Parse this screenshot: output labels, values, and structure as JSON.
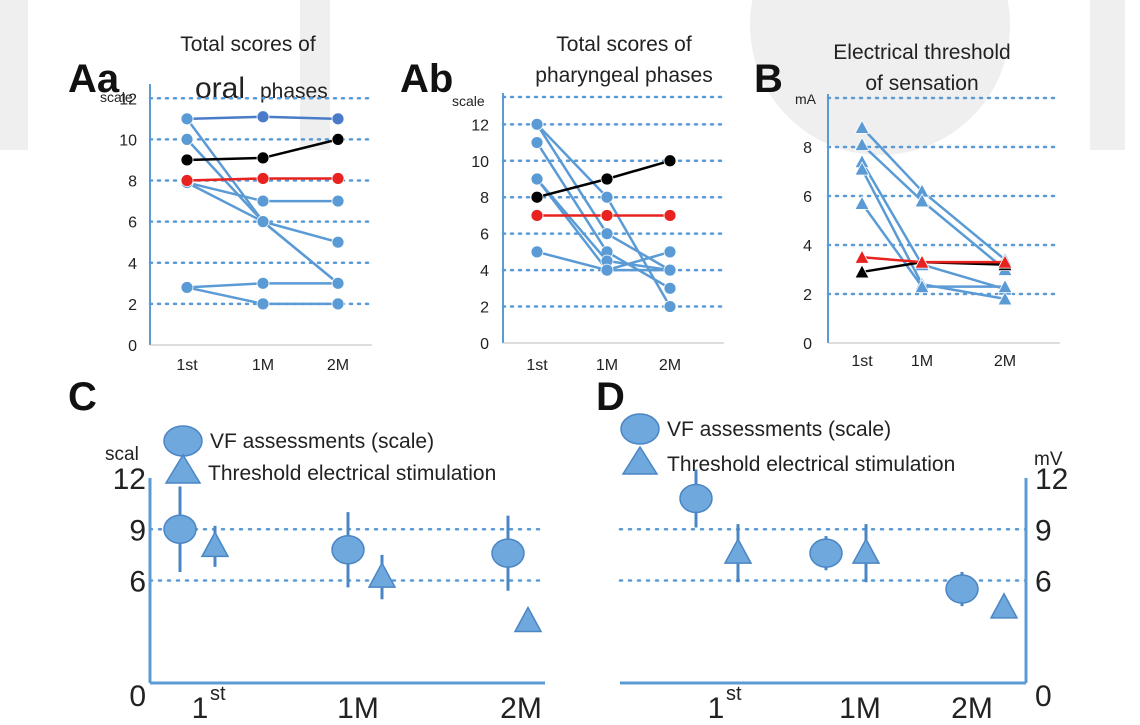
{
  "chart_data": [
    {
      "panel": "Aa",
      "type": "line",
      "title_line1": "Total scores of",
      "title_line2a": "oral",
      "title_line2b": "phases",
      "ylabel": "scale",
      "categories": [
        "1st",
        "1M",
        "2M"
      ],
      "yticks": [
        "0",
        "2",
        "4",
        "6",
        "8",
        "10",
        "12"
      ],
      "ylim": [
        0,
        12
      ],
      "grid": true,
      "series": [
        {
          "color": "#4a7bc8",
          "values": [
            11,
            11.1,
            11
          ]
        },
        {
          "color": "#5b9bd5",
          "values": [
            11,
            6,
            3
          ]
        },
        {
          "color": "#5b9bd5",
          "values": [
            10,
            6,
            5
          ]
        },
        {
          "color": "#5b9bd5",
          "values": [
            7.9,
            7,
            7
          ]
        },
        {
          "color": "#5b9bd5",
          "values": [
            7.9,
            6,
            3
          ]
        },
        {
          "color": "#5b9bd5",
          "values": [
            2.8,
            3,
            3
          ]
        },
        {
          "color": "#5b9bd5",
          "values": [
            2.8,
            2,
            2
          ]
        },
        {
          "color": "#000000",
          "values": [
            9,
            9.1,
            10
          ]
        },
        {
          "color": "#e8231f",
          "values": [
            8,
            8.1,
            8.1
          ]
        }
      ]
    },
    {
      "panel": "Ab",
      "type": "line",
      "title_line1": "Total scores of",
      "title_line2": "pharyngeal phases",
      "ylabel": "scale",
      "categories": [
        "1st",
        "1M",
        "2M"
      ],
      "yticks": [
        "0",
        "2",
        "4",
        "6",
        "8",
        "10",
        "12"
      ],
      "ylim": [
        0,
        12
      ],
      "grid": true,
      "series": [
        {
          "color": "#5b9bd5",
          "values": [
            12,
            8,
            2
          ]
        },
        {
          "color": "#5b9bd5",
          "values": [
            12,
            6,
            4
          ]
        },
        {
          "color": "#5b9bd5",
          "values": [
            11,
            5,
            3
          ]
        },
        {
          "color": "#5b9bd5",
          "values": [
            9,
            4,
            5
          ]
        },
        {
          "color": "#5b9bd5",
          "values": [
            9,
            4.5,
            4
          ]
        },
        {
          "color": "#5b9bd5",
          "values": [
            5,
            4,
            4
          ]
        },
        {
          "color": "#000000",
          "values": [
            8,
            9,
            10
          ]
        },
        {
          "color": "#e8231f",
          "values": [
            7,
            7,
            7
          ]
        }
      ]
    },
    {
      "panel": "B",
      "type": "line",
      "title_line1": "Electrical threshold",
      "title_line2": "of sensation",
      "ylabel": "mA",
      "categories": [
        "1st",
        "1M",
        "2M"
      ],
      "yticks": [
        "0",
        "2",
        "4",
        "6",
        "8"
      ],
      "ylim": [
        0,
        10
      ],
      "grid": true,
      "series": [
        {
          "color": "#5b9bd5",
          "values": [
            8.8,
            6.2,
            3.4
          ]
        },
        {
          "color": "#5b9bd5",
          "values": [
            8.1,
            5.8,
            3.0
          ]
        },
        {
          "color": "#5b9bd5",
          "values": [
            7.4,
            3.2,
            2.2
          ]
        },
        {
          "color": "#5b9bd5",
          "values": [
            7.1,
            2.4,
            1.8
          ]
        },
        {
          "color": "#5b9bd5",
          "values": [
            5.7,
            2.3,
            2.3
          ]
        },
        {
          "color": "#000000",
          "values": [
            2.9,
            3.3,
            3.2
          ]
        },
        {
          "color": "#e8231f",
          "values": [
            3.5,
            3.3,
            3.3
          ]
        }
      ]
    },
    {
      "panel": "C",
      "type": "scatter",
      "ylabel": "scal",
      "categories": [
        "1st",
        "1M",
        "2M"
      ],
      "category_sup": [
        "st",
        "",
        ""
      ],
      "category_base": [
        "1",
        "1M",
        "2M"
      ],
      "yticks": [
        "0",
        "6",
        "9",
        "12"
      ],
      "ylim": [
        0,
        12
      ],
      "grid_lines": [
        6,
        9
      ],
      "legend": [
        "VF assessments (scale)",
        "Threshold electrical stimulation"
      ],
      "series": [
        {
          "name": "VF assessments (scale)",
          "marker": "circle",
          "values": [
            9,
            7.8,
            7.6
          ],
          "err": [
            2.5,
            2.2,
            2.2
          ]
        },
        {
          "name": "Threshold electrical stimulation",
          "marker": "triangle",
          "values": [
            8,
            6.2,
            3.6
          ],
          "err": [
            1.2,
            1.3,
            0
          ]
        }
      ]
    },
    {
      "panel": "D",
      "type": "scatter",
      "ylabel": "mV",
      "categories": [
        "1st",
        "1M",
        "2M"
      ],
      "category_sup": [
        "st",
        "",
        ""
      ],
      "category_base": [
        "1",
        "1M",
        "2M"
      ],
      "yticks": [
        "0",
        "6",
        "9",
        "12"
      ],
      "ylim": [
        0,
        12
      ],
      "grid_lines": [
        6,
        9
      ],
      "legend": [
        "VF assessments (scale)",
        "Threshold electrical stimulation"
      ],
      "series": [
        {
          "name": "VF assessments (scale)",
          "marker": "circle",
          "values": [
            10.8,
            7.6,
            5.5
          ],
          "err": [
            1.7,
            1.0,
            1.0
          ]
        },
        {
          "name": "Threshold electrical stimulation",
          "marker": "triangle",
          "values": [
            7.6,
            7.6,
            4.4
          ],
          "err": [
            1.7,
            1.7,
            0
          ]
        }
      ]
    }
  ],
  "colors": {
    "axis": "#5b9bd5",
    "grid": "#5b9bd5",
    "marker": "#6fa8dc",
    "accent_red": "#e8231f",
    "black": "#000000"
  }
}
